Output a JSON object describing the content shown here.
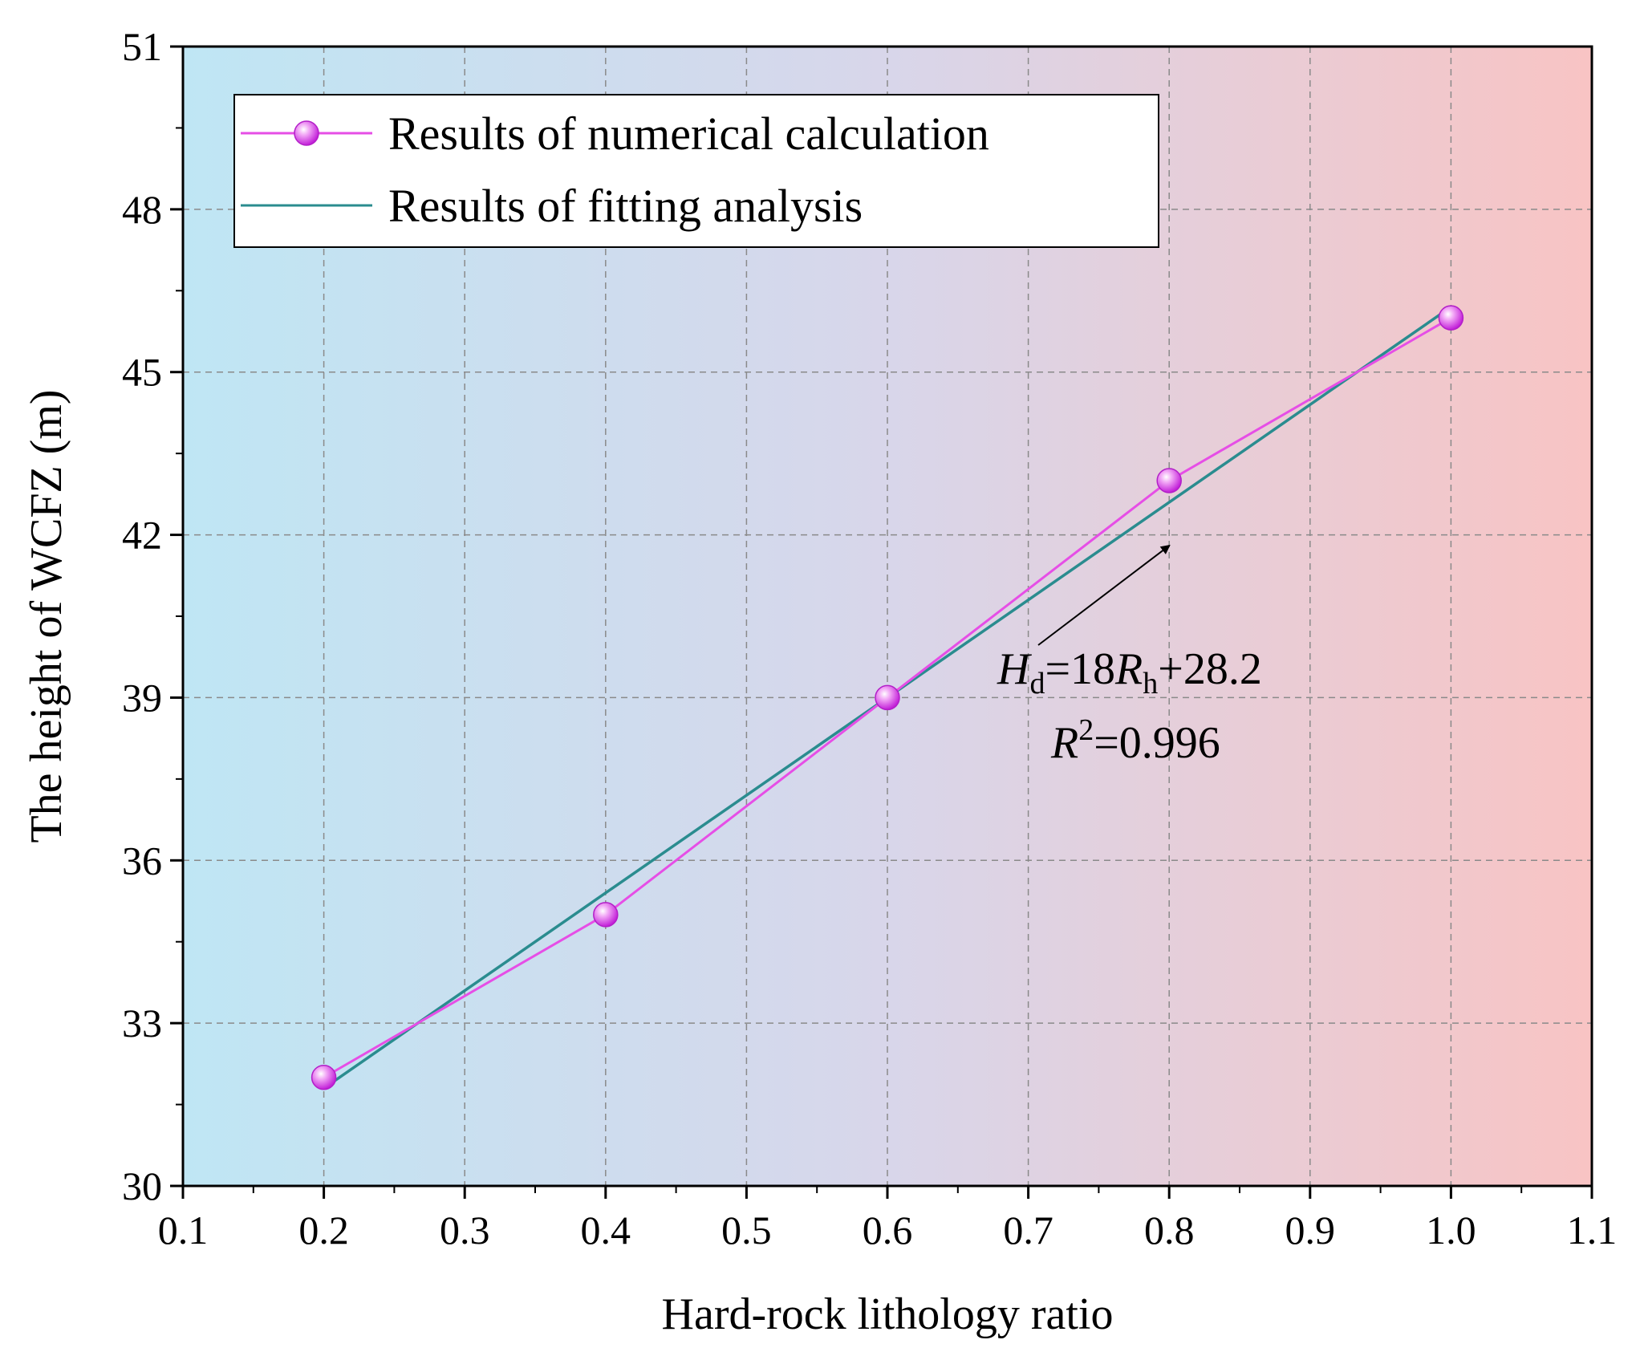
{
  "chart_data": {
    "type": "line",
    "title": "",
    "xlabel": "Hard-rock lithology ratio",
    "ylabel": "The height of WCFZ (m)",
    "xlim": [
      0.1,
      1.1
    ],
    "ylim": [
      30,
      51
    ],
    "x_ticks": [
      "0.1",
      "0.2",
      "0.3",
      "0.4",
      "0.5",
      "0.6",
      "0.7",
      "0.8",
      "0.9",
      "1.0",
      "1.1"
    ],
    "y_ticks": [
      "30",
      "33",
      "36",
      "39",
      "42",
      "45",
      "48",
      "51"
    ],
    "grid": true,
    "background_gradient": [
      "#bfe6f4",
      "#d8d6ea",
      "#f8c4c4"
    ],
    "series": [
      {
        "name": "Results of numerical calculation",
        "kind": "line+marker",
        "color": "#e64ee6",
        "marker_color": "#d93fe9",
        "x": [
          0.2,
          0.4,
          0.6,
          0.8,
          1.0
        ],
        "y": [
          32,
          35,
          39,
          43,
          46
        ]
      },
      {
        "name": "Results of fitting analysis",
        "kind": "line",
        "color": "#2a8c8f",
        "slope": 18,
        "intercept": 28.2,
        "x": [
          0.2,
          1.0
        ],
        "y": [
          31.8,
          46.2
        ]
      }
    ],
    "legend": {
      "position": "top-left",
      "entries": [
        "Results of numerical calculation",
        "Results of fitting analysis"
      ]
    },
    "annotation": {
      "H": "H",
      "H_sub": "d",
      "mid": "=18",
      "R": "R",
      "R_sub": "h",
      "tail": "+28.2",
      "r2_R": "R",
      "r2_sup": "2",
      "r2_val": "=0.996",
      "arrow_target_x": 0.8,
      "arrow_target_y": 41.8
    }
  }
}
